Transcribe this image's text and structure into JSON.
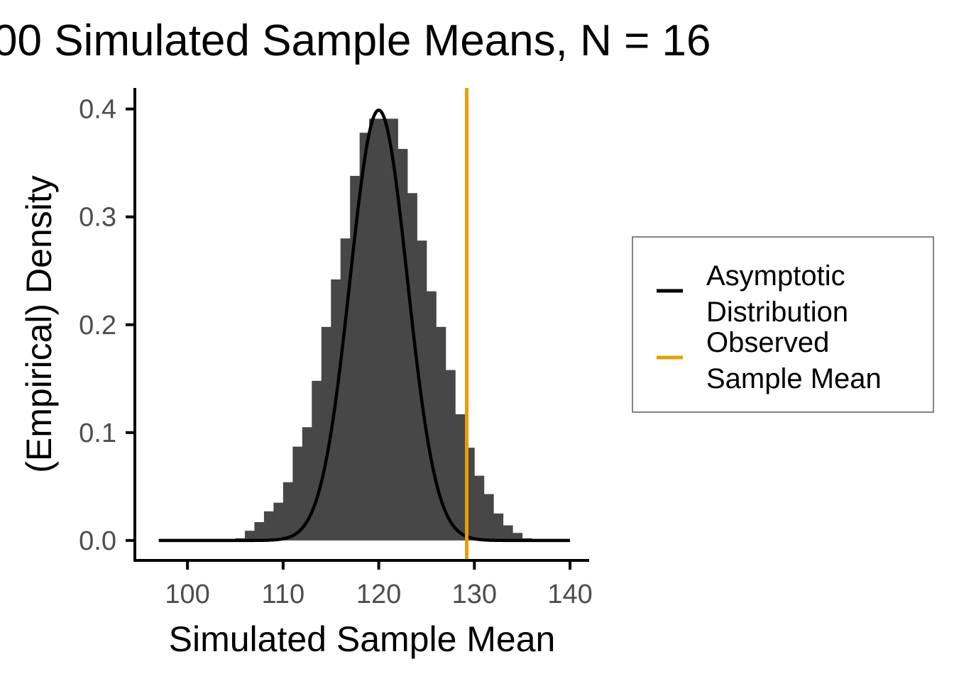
{
  "chart_data": {
    "type": "bar",
    "title": "00 Simulated Sample Means, N = 16",
    "xlabel": "Simulated Sample Mean",
    "ylabel": "(Empirical) Density",
    "xlim": [
      94.5,
      142
    ],
    "ylim": [
      -0.0185,
      0.4195
    ],
    "x_ticks": [
      100,
      110,
      120,
      130,
      140
    ],
    "x_tick_labels": [
      "100",
      "110",
      "120",
      "130",
      "140"
    ],
    "y_ticks": [
      0.0,
      0.1,
      0.2,
      0.3,
      0.4
    ],
    "y_tick_labels": [
      "0.0",
      "0.1",
      "0.2",
      "0.3",
      "0.4"
    ],
    "grid": false,
    "histogram": {
      "bin_width": 1,
      "bin_starts": [
        97,
        98,
        99,
        100,
        101,
        102,
        103,
        104,
        105,
        106,
        107,
        108,
        109,
        110,
        111,
        112,
        113,
        114,
        115,
        116,
        117,
        118,
        119,
        120,
        121,
        122,
        123,
        124,
        125,
        126,
        127,
        128,
        129,
        130,
        131,
        132,
        133,
        134,
        135,
        136,
        137,
        138,
        139
      ],
      "density": [
        0,
        0,
        0,
        0,
        0,
        0,
        0,
        0.001,
        0.002,
        0.009,
        0.017,
        0.027,
        0.035,
        0.054,
        0.087,
        0.105,
        0.148,
        0.198,
        0.242,
        0.28,
        0.338,
        0.378,
        0.391,
        0.391,
        0.391,
        0.363,
        0.322,
        0.278,
        0.231,
        0.198,
        0.158,
        0.117,
        0.086,
        0.06,
        0.043,
        0.025,
        0.014,
        0.007,
        0.002,
        0.001,
        0,
        0,
        0
      ],
      "color": "#474747"
    },
    "series": [
      {
        "name": "Asymptotic Distribution",
        "kind": "normal-density-curve",
        "mean": 120,
        "sd": 1,
        "x_range": [
          97,
          140
        ],
        "color": "#000000"
      },
      {
        "name": "Observed Sample Mean",
        "kind": "vertical-line",
        "x": 129.2,
        "color": "#E69F00"
      }
    ],
    "legend": {
      "placement": "right",
      "items": [
        {
          "label_line1": "Asymptotic",
          "label_line2": "Distribution",
          "color": "#000000"
        },
        {
          "label_line1": "Observed",
          "label_line2": "Sample Mean",
          "color": "#E69F00"
        }
      ]
    }
  }
}
